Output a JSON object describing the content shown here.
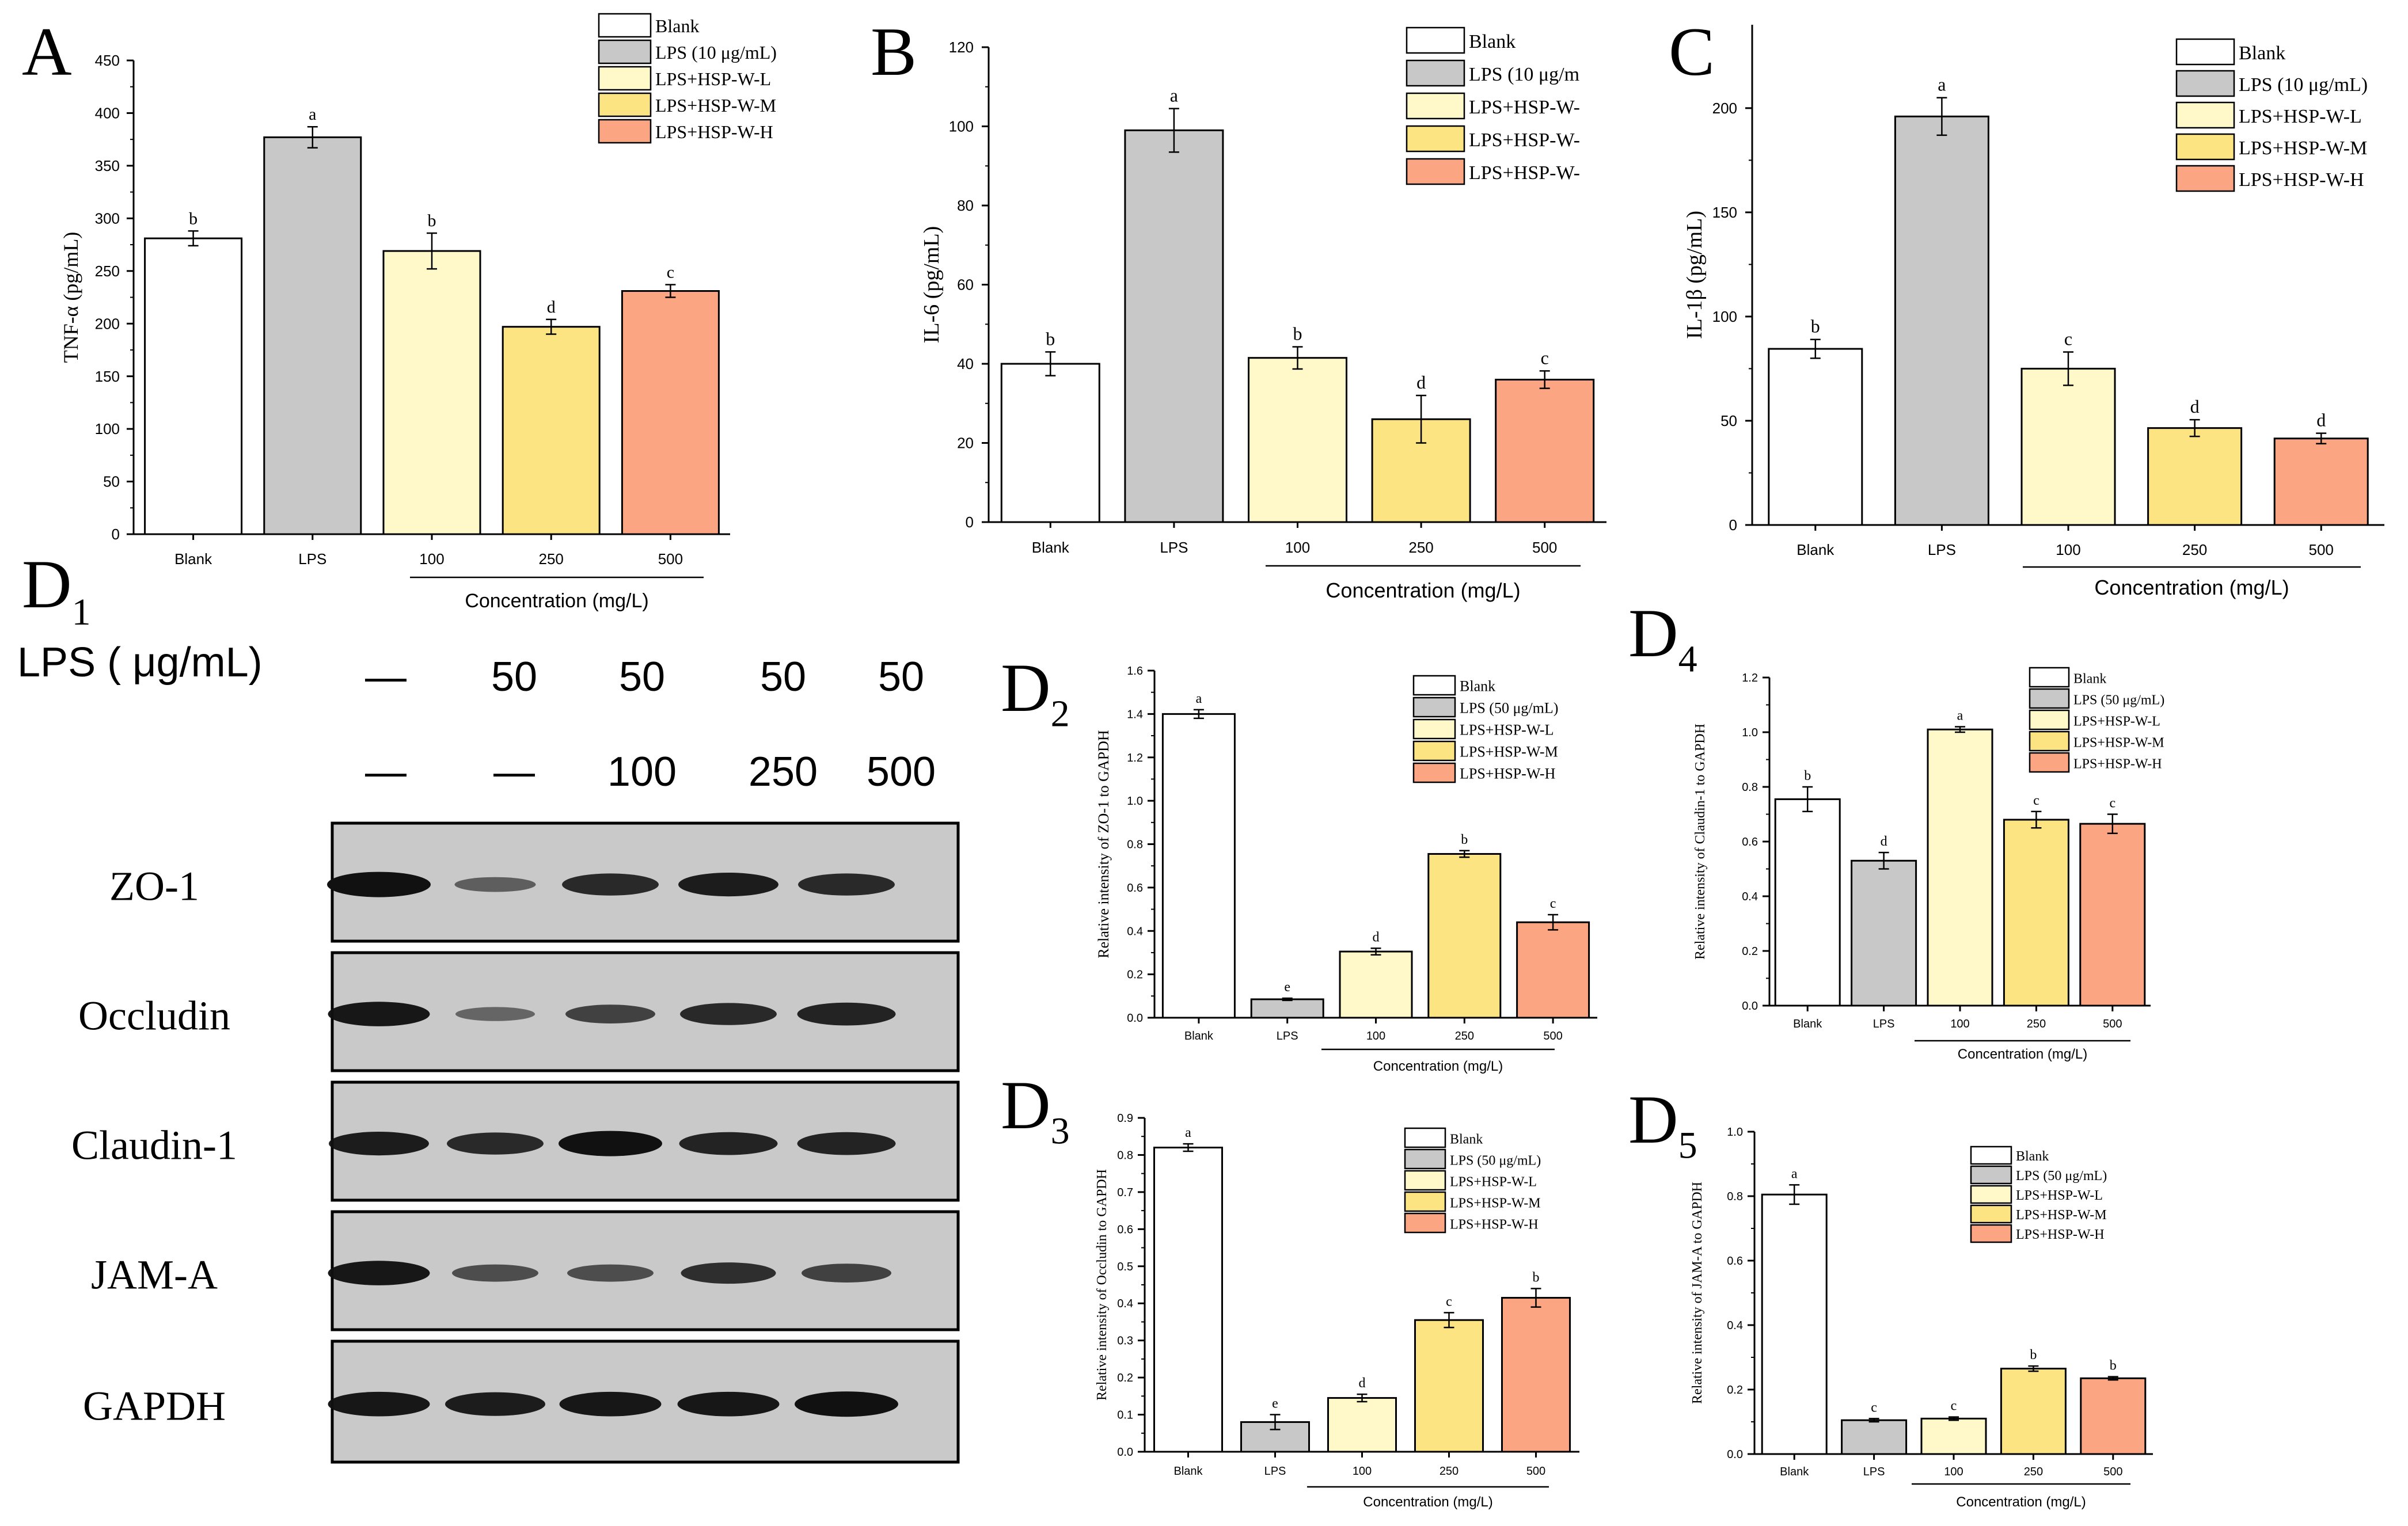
{
  "colors": {
    "blank": "#ffffff",
    "lps": "#c8c8c8",
    "low": "#fff9c9",
    "mid": "#fde483",
    "high": "#fba583",
    "axis": "#000000",
    "band": "#111111",
    "blot_bg": "#c9c9c9"
  },
  "chart_data": [
    {
      "id": "A",
      "type": "bar",
      "panel_label": "A",
      "ylabel": "TNF-α (pg/mL)",
      "xlabel": "Concentration (mg/L)",
      "categories": [
        "Blank",
        "LPS",
        "100",
        "250",
        "500"
      ],
      "values": [
        281,
        377,
        269,
        197,
        231
      ],
      "errors": [
        7,
        10,
        17,
        7,
        6
      ],
      "letters": [
        "b",
        "a",
        "b",
        "d",
        "c"
      ],
      "ylim": [
        0,
        450
      ],
      "yticks": [
        "0",
        "50",
        "100",
        "150",
        "200",
        "250",
        "300",
        "350",
        "400",
        "450"
      ],
      "legend": [
        "Blank",
        "LPS (10 μg/mL)",
        "LPS+HSP-W-L",
        "LPS+HSP-W-M",
        "LPS+HSP-W-H"
      ]
    },
    {
      "id": "B",
      "type": "bar",
      "panel_label": "B",
      "ylabel": "IL-6 (pg/mL)",
      "xlabel": "Concentration (mg/L)",
      "categories": [
        "Blank",
        "LPS",
        "100",
        "250",
        "500"
      ],
      "values": [
        40,
        99,
        41.5,
        26,
        36
      ],
      "errors": [
        3,
        5.5,
        2.8,
        6,
        2.2
      ],
      "letters": [
        "b",
        "a",
        "b",
        "d",
        "c"
      ],
      "ylim": [
        0,
        120
      ],
      "yticks": [
        "0",
        "20",
        "40",
        "60",
        "80",
        "100",
        "120"
      ],
      "legend": [
        "Blank",
        "LPS (10 μg/m",
        "LPS+HSP-W-",
        "LPS+HSP-W-",
        "LPS+HSP-W-"
      ]
    },
    {
      "id": "C",
      "type": "bar",
      "panel_label": "C",
      "ylabel": "IL-1β (pg/mL)",
      "xlabel": "Concentration (mg/L)",
      "categories": [
        "Blank",
        "LPS",
        "100",
        "250",
        "500"
      ],
      "values": [
        84.5,
        196,
        75,
        46.5,
        41.5
      ],
      "errors": [
        4.5,
        9,
        8,
        4,
        2.5
      ],
      "letters": [
        "b",
        "a",
        "c",
        "d",
        "d"
      ],
      "ylim": [
        0,
        240
      ],
      "yticks": [
        "0",
        "50",
        "100",
        "150",
        "200"
      ],
      "legend": [
        "Blank",
        "LPS (10 μg/mL)",
        "LPS+HSP-W-L",
        "LPS+HSP-W-M",
        "LPS+HSP-W-H"
      ]
    },
    {
      "id": "D2",
      "type": "bar",
      "panel_label": "D",
      "panel_sub": "2",
      "ylabel": "Relative intensity of ZO-1 to GAPDH",
      "xlabel": "Concentration (mg/L)",
      "categories": [
        "Blank",
        "LPS",
        "100",
        "250",
        "500"
      ],
      "values": [
        1.4,
        0.085,
        0.305,
        0.755,
        0.44
      ],
      "errors": [
        0.02,
        0.005,
        0.015,
        0.015,
        0.035
      ],
      "letters": [
        "a",
        "e",
        "d",
        "b",
        "c"
      ],
      "ylim": [
        0,
        1.6
      ],
      "yticks": [
        "0.0",
        "0.2",
        "0.4",
        "0.6",
        "0.8",
        "1.0",
        "1.2",
        "1.4",
        "1.6"
      ],
      "legend": [
        "Blank",
        "LPS (50 μg/mL)",
        "LPS+HSP-W-L",
        "LPS+HSP-W-M",
        "LPS+HSP-W-H"
      ]
    },
    {
      "id": "D4",
      "type": "bar",
      "panel_label": "D",
      "panel_sub": "4",
      "ylabel": "Relative intensity of Claudin-1 to GAPDH",
      "xlabel": "Concentration (mg/L)",
      "categories": [
        "Blank",
        "LPS",
        "100",
        "250",
        "500"
      ],
      "values": [
        0.755,
        0.53,
        1.01,
        0.68,
        0.665
      ],
      "errors": [
        0.045,
        0.03,
        0.01,
        0.03,
        0.035
      ],
      "letters": [
        "b",
        "d",
        "a",
        "c",
        "c"
      ],
      "ylim": [
        0,
        1.2
      ],
      "yticks": [
        "0.0",
        "0.2",
        "0.4",
        "0.6",
        "0.8",
        "1.0",
        "1.2"
      ],
      "legend": [
        "Blank",
        "LPS (50 μg/mL)",
        "LPS+HSP-W-L",
        "LPS+HSP-W-M",
        "LPS+HSP-W-H"
      ]
    },
    {
      "id": "D3",
      "type": "bar",
      "panel_label": "D",
      "panel_sub": "3",
      "ylabel": "Relative intensity of Occludin to GAPDH",
      "xlabel": "Concentration (mg/L)",
      "categories": [
        "Blank",
        "LPS",
        "100",
        "250",
        "500"
      ],
      "values": [
        0.82,
        0.08,
        0.145,
        0.355,
        0.415
      ],
      "errors": [
        0.01,
        0.02,
        0.01,
        0.02,
        0.025
      ],
      "letters": [
        "a",
        "e",
        "d",
        "c",
        "b"
      ],
      "ylim": [
        0,
        0.9
      ],
      "yticks": [
        "0.0",
        "0.1",
        "0.2",
        "0.3",
        "0.4",
        "0.5",
        "0.6",
        "0.7",
        "0.8",
        "0.9"
      ],
      "legend": [
        "Blank",
        "LPS (50 μg/mL)",
        "LPS+HSP-W-L",
        "LPS+HSP-W-M",
        "LPS+HSP-W-H"
      ]
    },
    {
      "id": "D5",
      "type": "bar",
      "panel_label": "D",
      "panel_sub": "5",
      "ylabel": "Relative intensity of JAM-A to GAPDH",
      "xlabel": "Concentration (mg/L)",
      "categories": [
        "Blank",
        "LPS",
        "100",
        "250",
        "500"
      ],
      "values": [
        0.805,
        0.105,
        0.11,
        0.265,
        0.235
      ],
      "errors": [
        0.03,
        0.005,
        0.005,
        0.008,
        0.005
      ],
      "letters": [
        "a",
        "c",
        "c",
        "b",
        "b"
      ],
      "ylim": [
        0,
        1.0
      ],
      "yticks": [
        "0.0",
        "0.2",
        "0.4",
        "0.6",
        "0.8",
        "1.0"
      ],
      "legend": [
        "Blank",
        "LPS (50 μg/mL)",
        "LPS+HSP-W-L",
        "LPS+HSP-W-M",
        "LPS+HSP-W-H"
      ]
    }
  ],
  "blot": {
    "panel_label": "D",
    "panel_sub": "1",
    "lps_label": "LPS ( μg/mL)",
    "lps_row": [
      "—",
      "50",
      "50",
      "50",
      "50"
    ],
    "hsp_row": [
      "—",
      "—",
      "100",
      "250",
      "500"
    ],
    "proteins": [
      {
        "name": "ZO-1",
        "intensity": [
          1.0,
          0.35,
          0.8,
          0.9,
          0.8
        ]
      },
      {
        "name": "Occludin",
        "intensity": [
          0.95,
          0.3,
          0.6,
          0.8,
          0.85
        ]
      },
      {
        "name": "Claudin-1",
        "intensity": [
          0.9,
          0.8,
          1.0,
          0.85,
          0.85
        ]
      },
      {
        "name": "JAM-A",
        "intensity": [
          0.95,
          0.5,
          0.5,
          0.75,
          0.6
        ]
      },
      {
        "name": "GAPDH",
        "intensity": [
          0.95,
          0.9,
          0.95,
          0.95,
          1.0
        ]
      }
    ]
  }
}
